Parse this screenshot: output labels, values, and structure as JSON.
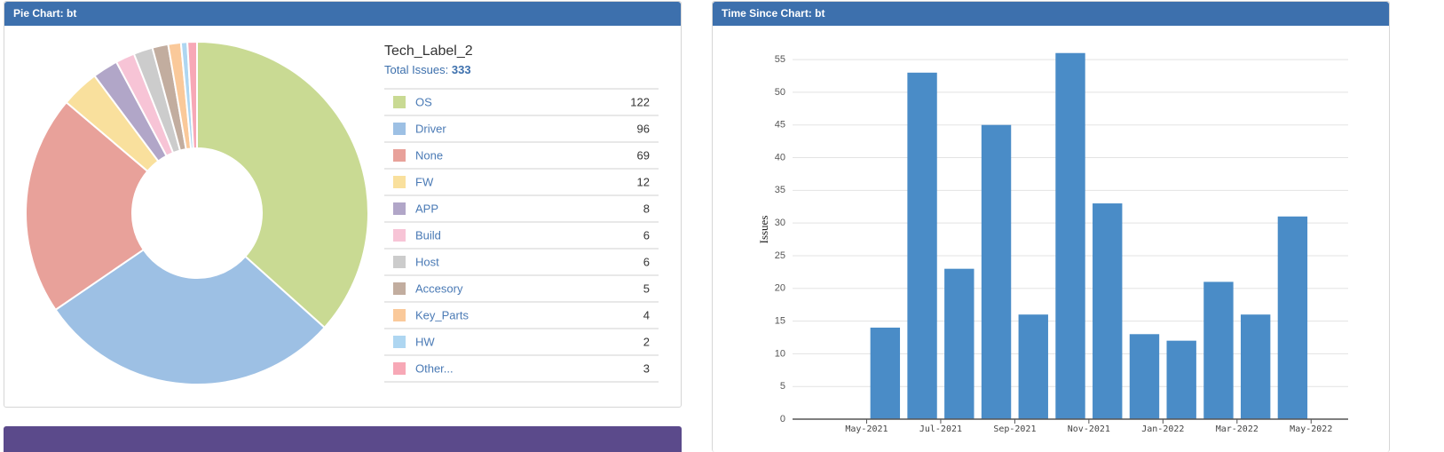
{
  "panels": [
    {
      "title": "Pie Chart: bt"
    },
    {
      "title": "Time Since Chart: bt"
    }
  ],
  "chart_data": [
    {
      "type": "pie",
      "title": "Tech_Label_2",
      "total_label": "Total Issues:",
      "total": 333,
      "categories": [
        "OS",
        "Driver",
        "None",
        "FW",
        "APP",
        "Build",
        "Host",
        "Accesory",
        "Key_Parts",
        "HW",
        "Other..."
      ],
      "values": [
        122,
        96,
        69,
        12,
        8,
        6,
        6,
        5,
        4,
        2,
        3
      ],
      "colors": [
        "#c9da93",
        "#9dc0e4",
        "#e8a19a",
        "#f9e09d",
        "#b1a6c8",
        "#f7c4d6",
        "#cccccc",
        "#c2ad9f",
        "#fac99a",
        "#aed6f1",
        "#f7a8b6"
      ]
    },
    {
      "type": "bar",
      "ylabel": "Issues",
      "color": "#4a8cc7",
      "grid": true,
      "x": [
        "2021-05",
        "2021-06",
        "2021-07",
        "2021-08",
        "2021-09",
        "2021-10",
        "2021-11",
        "2021-12",
        "2022-01",
        "2022-02",
        "2022-03",
        "2022-04"
      ],
      "values": [
        14,
        53,
        23,
        45,
        16,
        56,
        33,
        13,
        12,
        21,
        16,
        31
      ],
      "xlim": [
        "2021-03",
        "2022-06"
      ],
      "xticks": [
        {
          "value": "2021-05",
          "label": "May-2021"
        },
        {
          "value": "2021-07",
          "label": "Jul-2021"
        },
        {
          "value": "2021-09",
          "label": "Sep-2021"
        },
        {
          "value": "2021-11",
          "label": "Nov-2021"
        },
        {
          "value": "2022-01",
          "label": "Jan-2022"
        },
        {
          "value": "2022-03",
          "label": "Mar-2022"
        },
        {
          "value": "2022-05",
          "label": "May-2022"
        }
      ],
      "ylim": [
        0,
        58
      ],
      "yticks": [
        0,
        5,
        10,
        15,
        20,
        25,
        30,
        35,
        40,
        45,
        50,
        55
      ]
    }
  ]
}
